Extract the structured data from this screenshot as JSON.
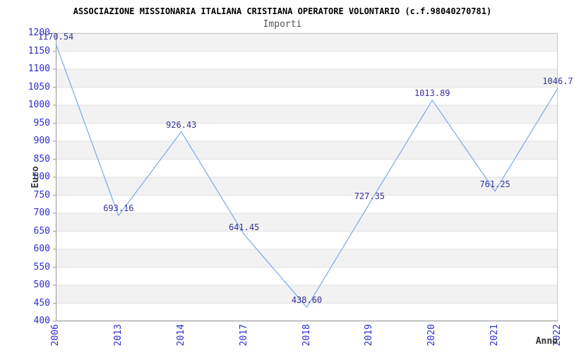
{
  "chart": {
    "title": "ASSOCIAZIONE MISSIONARIA ITALIANA CRISTIANA OPERATORE VOLONTARIO (c.f.98040270781)",
    "subtitle": "Importi",
    "ylabel": "Euro",
    "xlabel": "Anno"
  },
  "chart_data": {
    "type": "line",
    "title": "ASSOCIAZIONE MISSIONARIA ITALIANA CRISTIANA OPERATORE VOLONTARIO (c.f.98040270781)",
    "subtitle": "Importi",
    "xlabel": "Anno",
    "ylabel": "Euro",
    "categories": [
      "2006",
      "2013",
      "2014",
      "2017",
      "2018",
      "2019",
      "2020",
      "2021",
      "2022"
    ],
    "values": [
      1170.54,
      693.16,
      926.43,
      641.45,
      438.6,
      727.35,
      1013.89,
      761.25,
      1046.7
    ],
    "value_labels": [
      "1170.54",
      "693.16",
      "926.43",
      "641.45",
      "438.60",
      "727.35",
      "1013.89",
      "761.25",
      "1046.7"
    ],
    "ylim": [
      400,
      1200
    ],
    "yticks": [
      400,
      450,
      500,
      550,
      600,
      650,
      700,
      750,
      800,
      850,
      900,
      950,
      1000,
      1050,
      1100,
      1150,
      1200
    ],
    "grid": "horizontal",
    "legend": "none",
    "colors": {
      "line": "#7CA9E4",
      "tick_label": "#2E2ECE",
      "value_label": "#333399",
      "band": "#F2F2F2",
      "grid": "#E2E2E2",
      "border": "#C9C9C9",
      "axis": "#999999",
      "title": "#000000",
      "subtitle": "#555555",
      "axis_title": "#333333"
    }
  }
}
